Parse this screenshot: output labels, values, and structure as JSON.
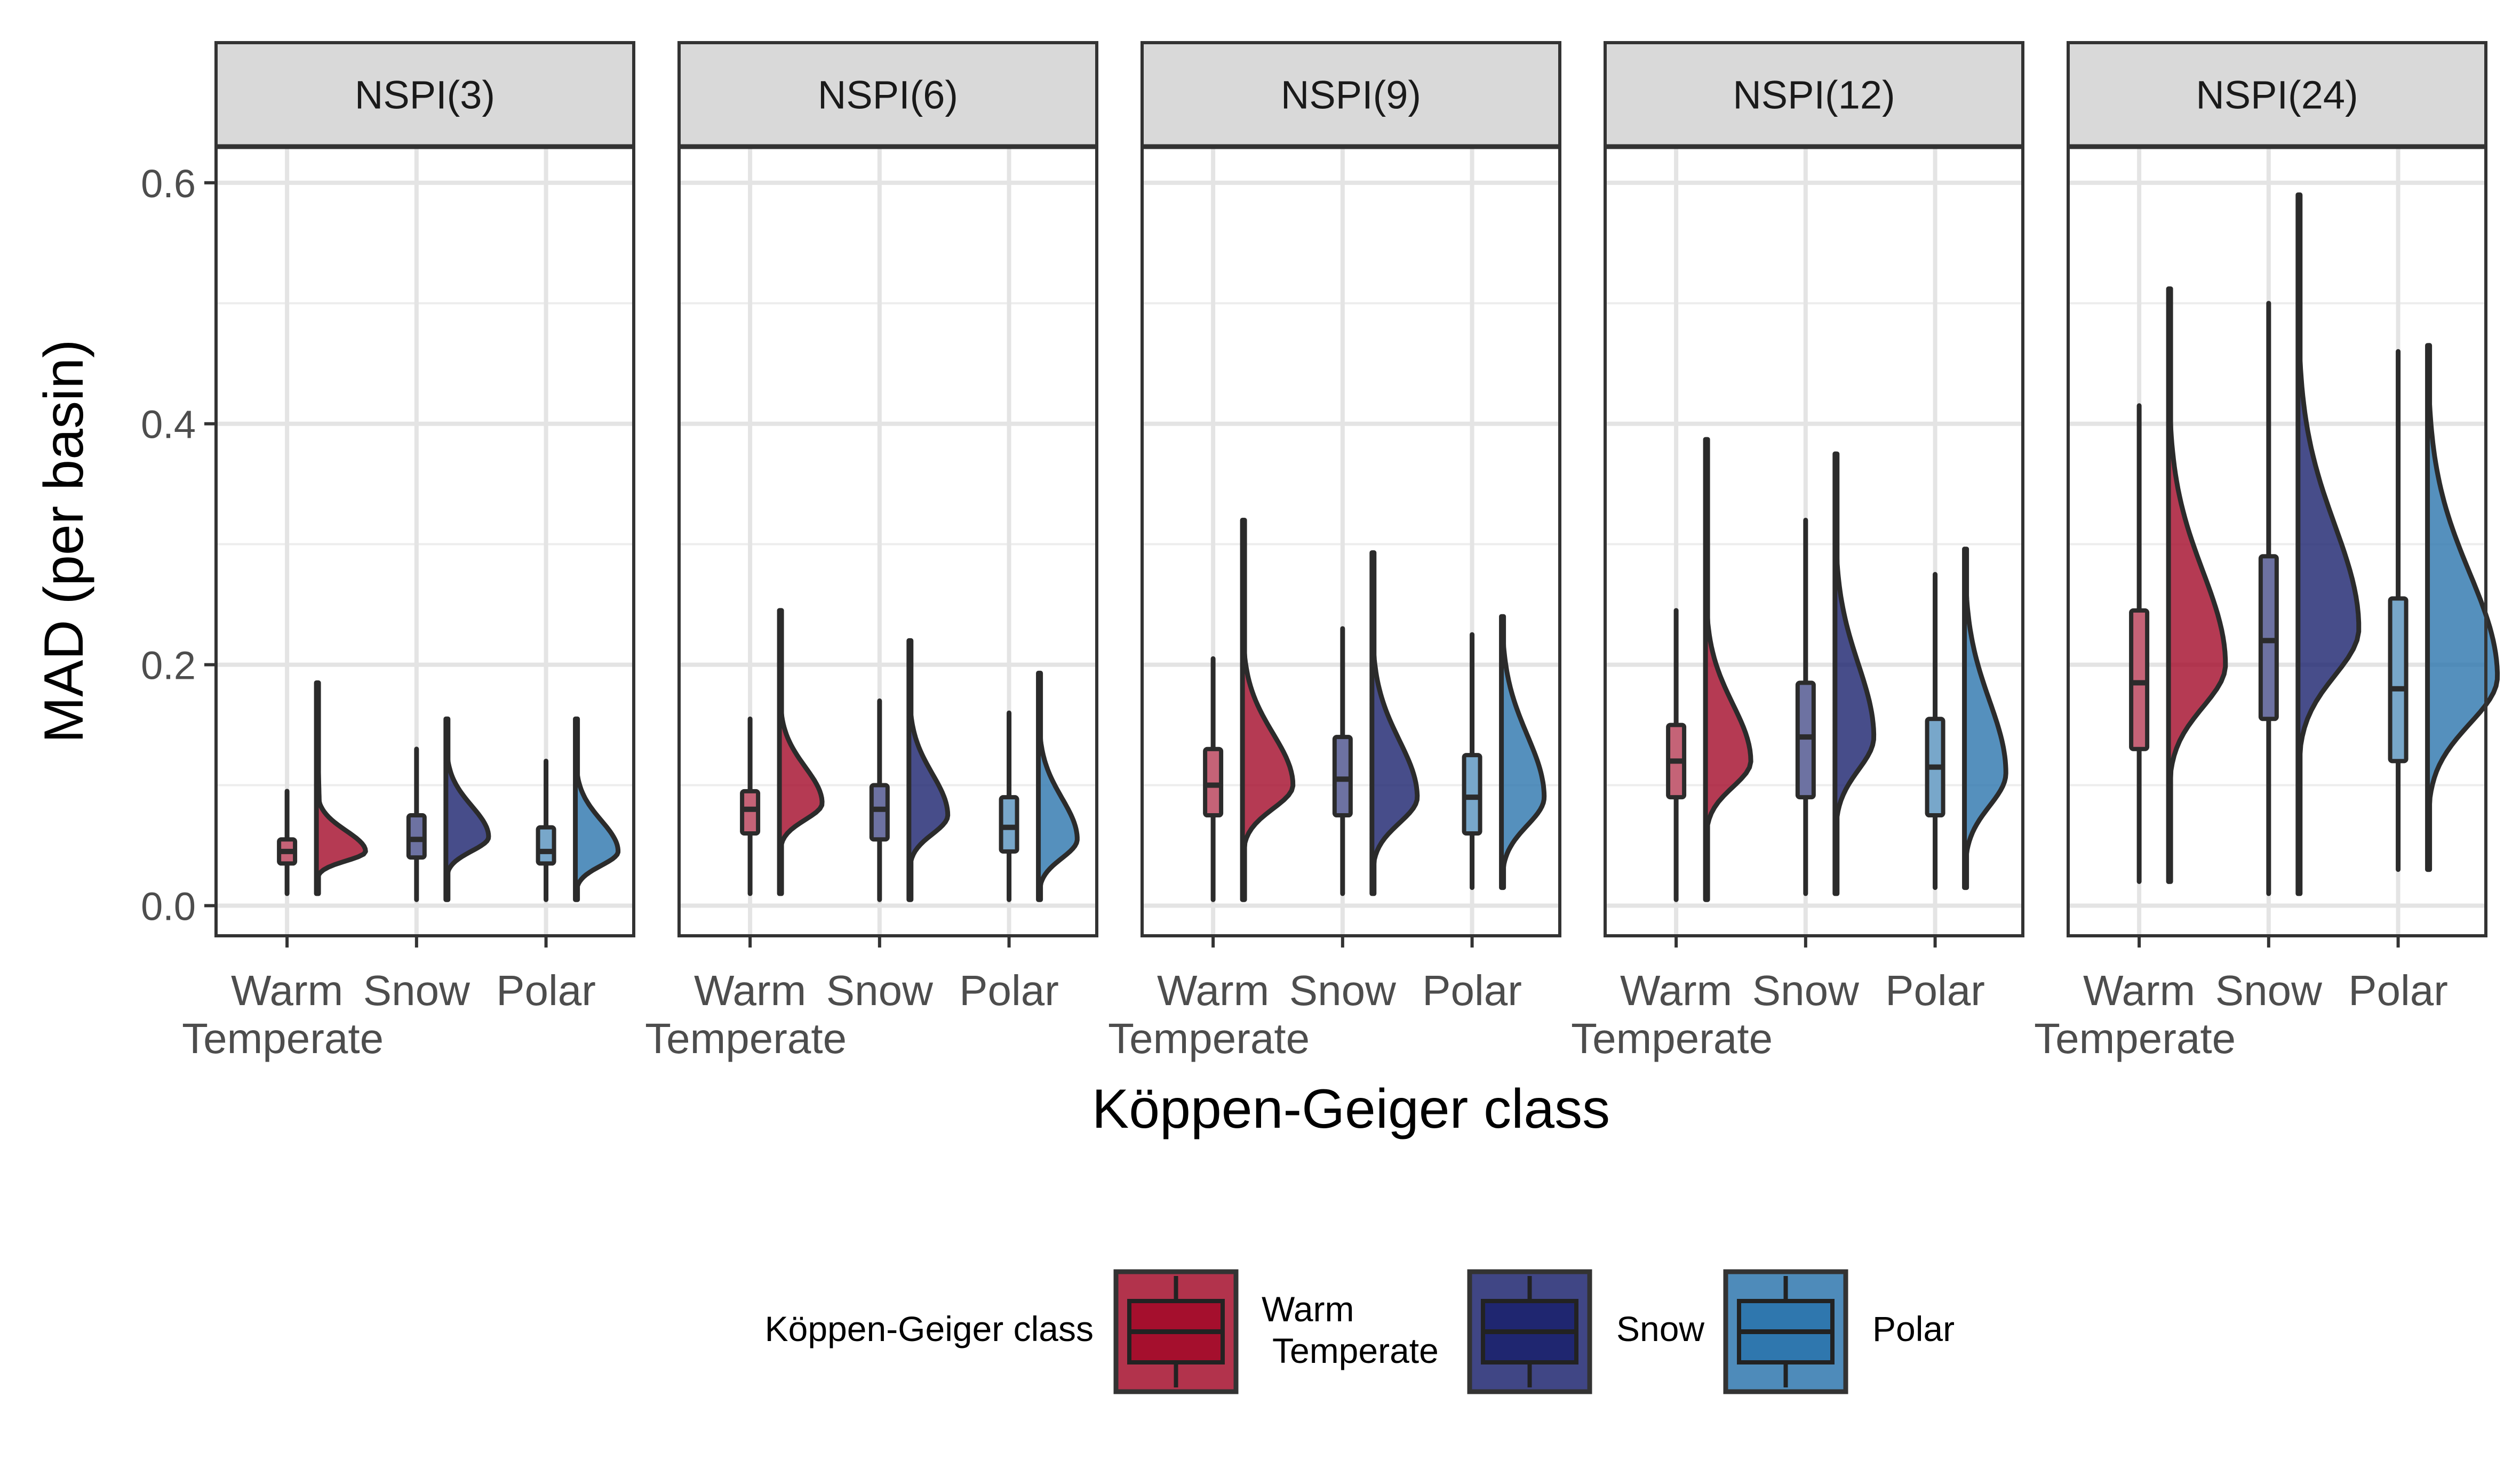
{
  "chart_data": {
    "type": "violin",
    "ylabel": "MAD (per basin)",
    "xlabel": "Köppen-Geiger class",
    "ylim": [
      -0.025,
      0.63
    ],
    "yticks": [
      "0.0",
      "0.2",
      "0.4",
      "0.6"
    ],
    "ytick_values": [
      0.0,
      0.2,
      0.4,
      0.6
    ],
    "grid": true,
    "categories": [
      {
        "key": "warm",
        "lines": [
          "Warm",
          "Temperate"
        ]
      },
      {
        "key": "snow",
        "lines": [
          "Snow"
        ]
      },
      {
        "key": "polar",
        "lines": [
          "Polar"
        ]
      }
    ],
    "colors": {
      "warm": "#A50F2D",
      "snow": "#1F2670",
      "polar": "#2F77AE"
    },
    "legend": {
      "title": "Köppen-Geiger class",
      "position": "bottom",
      "entries": [
        {
          "key": "warm",
          "lines": [
            "Warm",
            "Temperate"
          ]
        },
        {
          "key": "snow",
          "lines": [
            "Snow"
          ]
        },
        {
          "key": "polar",
          "lines": [
            "Polar"
          ]
        }
      ]
    },
    "panels": [
      {
        "title": "NSPI(3)",
        "groups": [
          {
            "key": "warm",
            "min": 0.01,
            "q1": 0.035,
            "median": 0.045,
            "q3": 0.055,
            "max": 0.095,
            "peak": 0.045,
            "width": 0.38,
            "spread": 0.02,
            "upper_tail": 0.185
          },
          {
            "key": "snow",
            "min": 0.005,
            "q1": 0.04,
            "median": 0.055,
            "q3": 0.075,
            "max": 0.13,
            "peak": 0.057,
            "width": 0.33,
            "spread": 0.03,
            "upper_tail": 0.155
          },
          {
            "key": "polar",
            "min": 0.005,
            "q1": 0.035,
            "median": 0.045,
            "q3": 0.065,
            "max": 0.12,
            "peak": 0.045,
            "width": 0.33,
            "spread": 0.03,
            "upper_tail": 0.155
          }
        ]
      },
      {
        "title": "NSPI(6)",
        "groups": [
          {
            "key": "warm",
            "min": 0.01,
            "q1": 0.06,
            "median": 0.08,
            "q3": 0.095,
            "max": 0.155,
            "peak": 0.085,
            "width": 0.33,
            "spread": 0.035,
            "upper_tail": 0.245
          },
          {
            "key": "snow",
            "min": 0.005,
            "q1": 0.055,
            "median": 0.08,
            "q3": 0.1,
            "max": 0.17,
            "peak": 0.075,
            "width": 0.3,
            "spread": 0.04,
            "upper_tail": 0.22
          },
          {
            "key": "polar",
            "min": 0.005,
            "q1": 0.045,
            "median": 0.065,
            "q3": 0.09,
            "max": 0.16,
            "peak": 0.055,
            "width": 0.3,
            "spread": 0.04,
            "upper_tail": 0.193
          }
        ]
      },
      {
        "title": "NSPI(9)",
        "groups": [
          {
            "key": "warm",
            "min": 0.005,
            "q1": 0.075,
            "median": 0.1,
            "q3": 0.13,
            "max": 0.205,
            "peak": 0.1,
            "width": 0.39,
            "spread": 0.05,
            "upper_tail": 0.32
          },
          {
            "key": "snow",
            "min": 0.01,
            "q1": 0.075,
            "median": 0.105,
            "q3": 0.14,
            "max": 0.23,
            "peak": 0.09,
            "width": 0.35,
            "spread": 0.055,
            "upper_tail": 0.293
          },
          {
            "key": "polar",
            "min": 0.015,
            "q1": 0.06,
            "median": 0.09,
            "q3": 0.125,
            "max": 0.225,
            "peak": 0.09,
            "width": 0.33,
            "spread": 0.06,
            "upper_tail": 0.24
          }
        ]
      },
      {
        "title": "NSPI(12)",
        "groups": [
          {
            "key": "warm",
            "min": 0.005,
            "q1": 0.09,
            "median": 0.12,
            "q3": 0.15,
            "max": 0.245,
            "peak": 0.12,
            "width": 0.35,
            "spread": 0.055,
            "upper_tail": 0.387
          },
          {
            "key": "snow",
            "min": 0.01,
            "q1": 0.09,
            "median": 0.14,
            "q3": 0.185,
            "max": 0.32,
            "peak": 0.14,
            "width": 0.3,
            "spread": 0.07,
            "upper_tail": 0.375
          },
          {
            "key": "polar",
            "min": 0.015,
            "q1": 0.075,
            "median": 0.115,
            "q3": 0.155,
            "max": 0.275,
            "peak": 0.11,
            "width": 0.32,
            "spread": 0.07,
            "upper_tail": 0.296
          }
        ]
      },
      {
        "title": "NSPI(24)",
        "groups": [
          {
            "key": "warm",
            "min": 0.02,
            "q1": 0.13,
            "median": 0.185,
            "q3": 0.245,
            "max": 0.415,
            "peak": 0.2,
            "width": 0.44,
            "spread": 0.09,
            "upper_tail": 0.512
          },
          {
            "key": "snow",
            "min": 0.01,
            "q1": 0.155,
            "median": 0.22,
            "q3": 0.29,
            "max": 0.5,
            "peak": 0.23,
            "width": 0.47,
            "spread": 0.1,
            "upper_tail": 0.59
          },
          {
            "key": "polar",
            "min": 0.03,
            "q1": 0.12,
            "median": 0.18,
            "q3": 0.255,
            "max": 0.46,
            "peak": 0.19,
            "width": 0.54,
            "spread": 0.1,
            "upper_tail": 0.465
          }
        ]
      }
    ]
  }
}
